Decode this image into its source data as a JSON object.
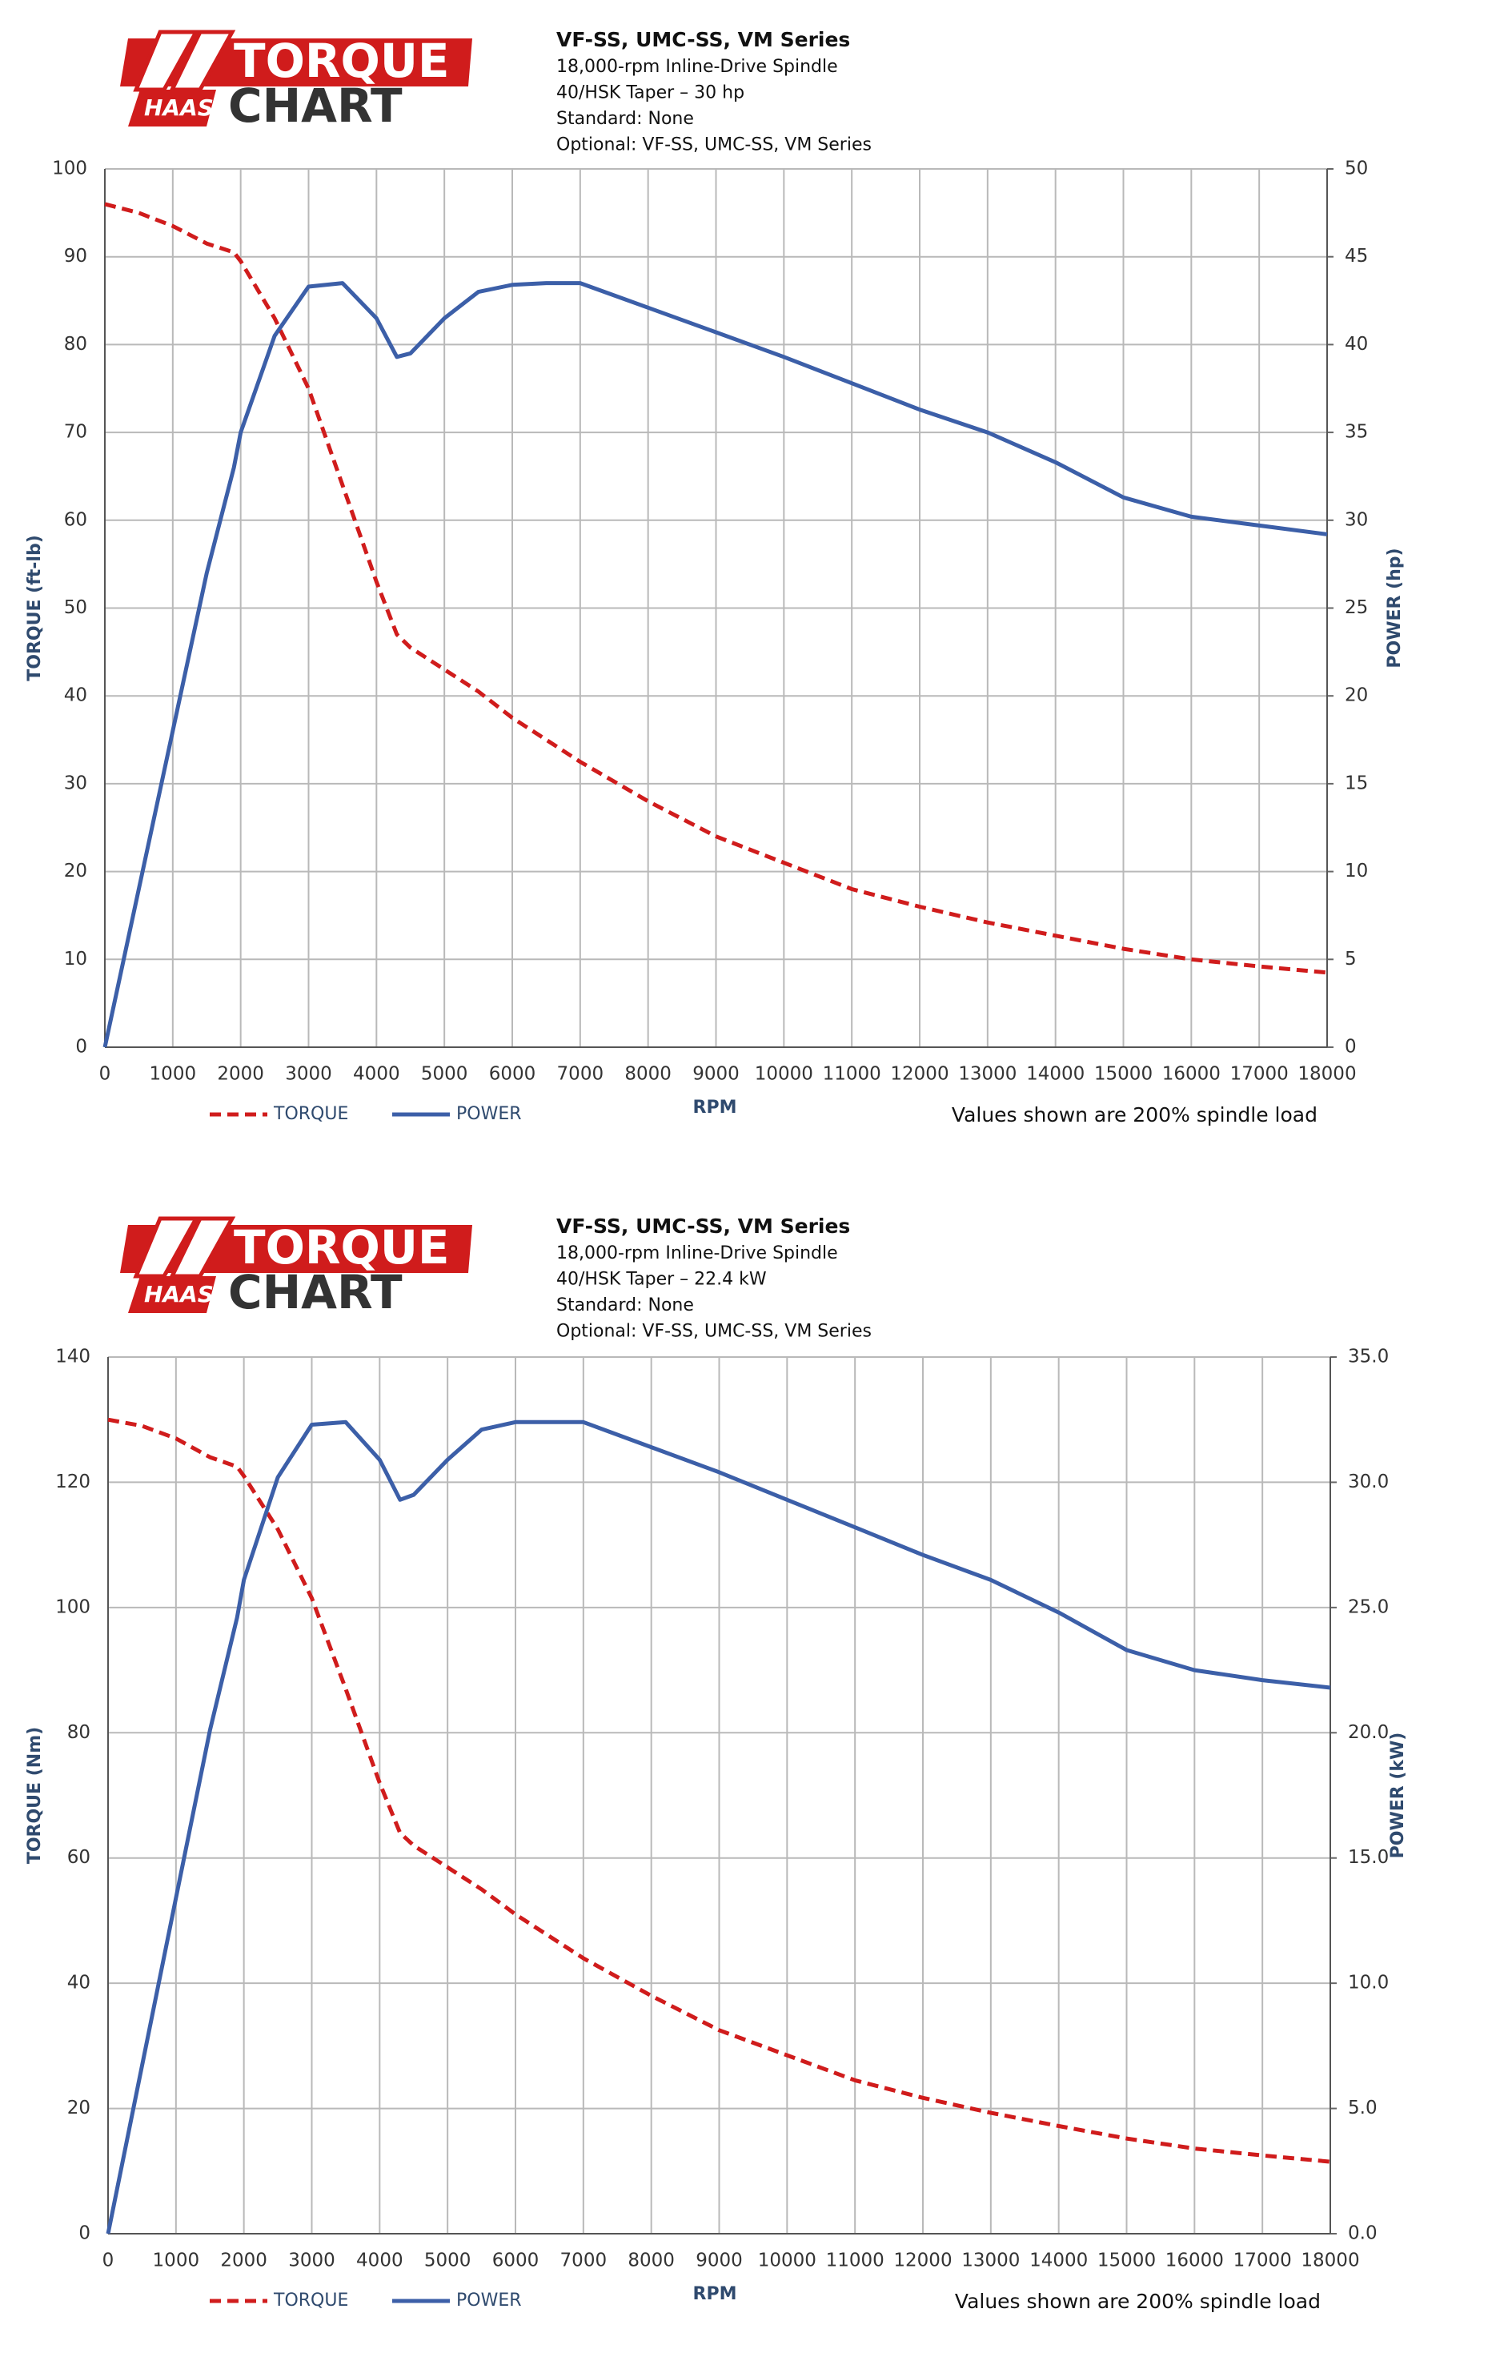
{
  "chart_data": [
    {
      "type": "line",
      "logo": {
        "line1": "TORQUE",
        "line2": "CHART",
        "brand": "HAAS"
      },
      "title": "VF-SS, UMC-SS, VM Series",
      "subtitle": [
        "18,000-rpm Inline-Drive Spindle",
        "40/HSK Taper – 30 hp",
        "Standard: None",
        "Optional: VF-SS, UMC-SS, VM Series"
      ],
      "x_label": "RPM",
      "y_label": "TORQUE (ft-lb)",
      "y2_label": "POWER (hp)",
      "annotation": "Values shown are 200% spindle load",
      "x": [
        0,
        500,
        1000,
        1500,
        1900,
        2000,
        2500,
        3000,
        3500,
        4000,
        4300,
        4500,
        5000,
        5500,
        6000,
        6500,
        7000,
        8000,
        9000,
        10000,
        11000,
        12000,
        13000,
        14000,
        15000,
        16000,
        17000,
        18000
      ],
      "series": [
        {
          "name": "TORQUE",
          "color": "#d01c1c",
          "style": "dashed",
          "axis": "y",
          "values": [
            96,
            95,
            93.5,
            91.5,
            90.5,
            89.5,
            83,
            75,
            64,
            53,
            47,
            45.5,
            43,
            40.5,
            37.5,
            35,
            32.5,
            28,
            24,
            21,
            18,
            16,
            14.2,
            12.7,
            11.2,
            10,
            9.2,
            8.5
          ]
        },
        {
          "name": "POWER",
          "color": "#3c5fa8",
          "style": "solid",
          "axis": "y2",
          "values": [
            0,
            9,
            18,
            27,
            33,
            35,
            40.5,
            43.3,
            43.5,
            41.5,
            39.3,
            39.5,
            41.5,
            43,
            43.4,
            43.5,
            43.5,
            42.1,
            40.7,
            39.3,
            37.8,
            36.3,
            35,
            33.3,
            31.3,
            30.2,
            29.7,
            29.2
          ]
        }
      ],
      "xlim": [
        0,
        18000
      ],
      "xticks": [
        0,
        1000,
        2000,
        3000,
        4000,
        5000,
        6000,
        7000,
        8000,
        9000,
        10000,
        11000,
        12000,
        13000,
        14000,
        15000,
        16000,
        17000,
        18000
      ],
      "ylim": [
        0,
        100
      ],
      "yticks": [
        0,
        10,
        20,
        30,
        40,
        50,
        60,
        70,
        80,
        90,
        100
      ],
      "y2lim": [
        0,
        50
      ],
      "y2ticks": [
        0,
        5,
        10,
        15,
        20,
        25,
        30,
        35,
        40,
        45,
        50
      ],
      "grid": true,
      "legend": "bottom-left"
    },
    {
      "type": "line",
      "logo": {
        "line1": "TORQUE",
        "line2": "CHART",
        "brand": "HAAS"
      },
      "title": "VF-SS, UMC-SS, VM Series",
      "subtitle": [
        "18,000-rpm Inline-Drive Spindle",
        "40/HSK Taper – 22.4 kW",
        "Standard: None",
        "Optional: VF-SS, UMC-SS, VM Series"
      ],
      "x_label": "RPM",
      "y_label": "TORQUE (Nm)",
      "y2_label": "POWER (kW)",
      "annotation": "Values shown are 200% spindle load",
      "x": [
        0,
        500,
        1000,
        1500,
        1900,
        2000,
        2500,
        3000,
        3500,
        4000,
        4300,
        4500,
        5000,
        5500,
        6000,
        6500,
        7000,
        8000,
        9000,
        10000,
        11000,
        12000,
        13000,
        14000,
        15000,
        16000,
        17000,
        18000
      ],
      "series": [
        {
          "name": "TORQUE",
          "color": "#d01c1c",
          "style": "dashed",
          "axis": "y",
          "values": [
            130,
            129,
            127,
            124,
            122.5,
            121,
            112.5,
            101.5,
            87,
            72,
            64,
            62,
            58.5,
            55,
            51,
            47.5,
            44,
            38,
            32.5,
            28.5,
            24.5,
            21.7,
            19.3,
            17.2,
            15.2,
            13.6,
            12.5,
            11.5
          ]
        },
        {
          "name": "POWER",
          "color": "#3c5fa8",
          "style": "solid",
          "axis": "y2",
          "values": [
            0,
            6.7,
            13.4,
            20.1,
            24.6,
            26.1,
            30.2,
            32.3,
            32.4,
            30.9,
            29.3,
            29.5,
            30.9,
            32.1,
            32.4,
            32.4,
            32.4,
            31.4,
            30.4,
            29.3,
            28.2,
            27.1,
            26.1,
            24.8,
            23.3,
            22.5,
            22.1,
            21.8
          ]
        }
      ],
      "xlim": [
        0,
        18000
      ],
      "xticks": [
        0,
        1000,
        2000,
        3000,
        4000,
        5000,
        6000,
        7000,
        8000,
        9000,
        10000,
        11000,
        12000,
        13000,
        14000,
        15000,
        16000,
        17000,
        18000
      ],
      "ylim": [
        0,
        140
      ],
      "yticks": [
        0,
        20,
        40,
        60,
        80,
        100,
        120,
        140
      ],
      "y2lim": [
        0,
        35
      ],
      "y2ticks": [
        {
          "value": 0,
          "label": "0.0"
        },
        {
          "value": 5,
          "label": "5.0"
        },
        {
          "value": 10,
          "label": "10.0"
        },
        {
          "value": 15,
          "label": "15.0"
        },
        {
          "value": 20,
          "label": "20.0"
        },
        {
          "value": 25,
          "label": "25.0"
        },
        {
          "value": 30,
          "label": "30.0"
        },
        {
          "value": 35,
          "label": "35.0"
        }
      ],
      "grid": true,
      "legend": "bottom-left"
    }
  ]
}
